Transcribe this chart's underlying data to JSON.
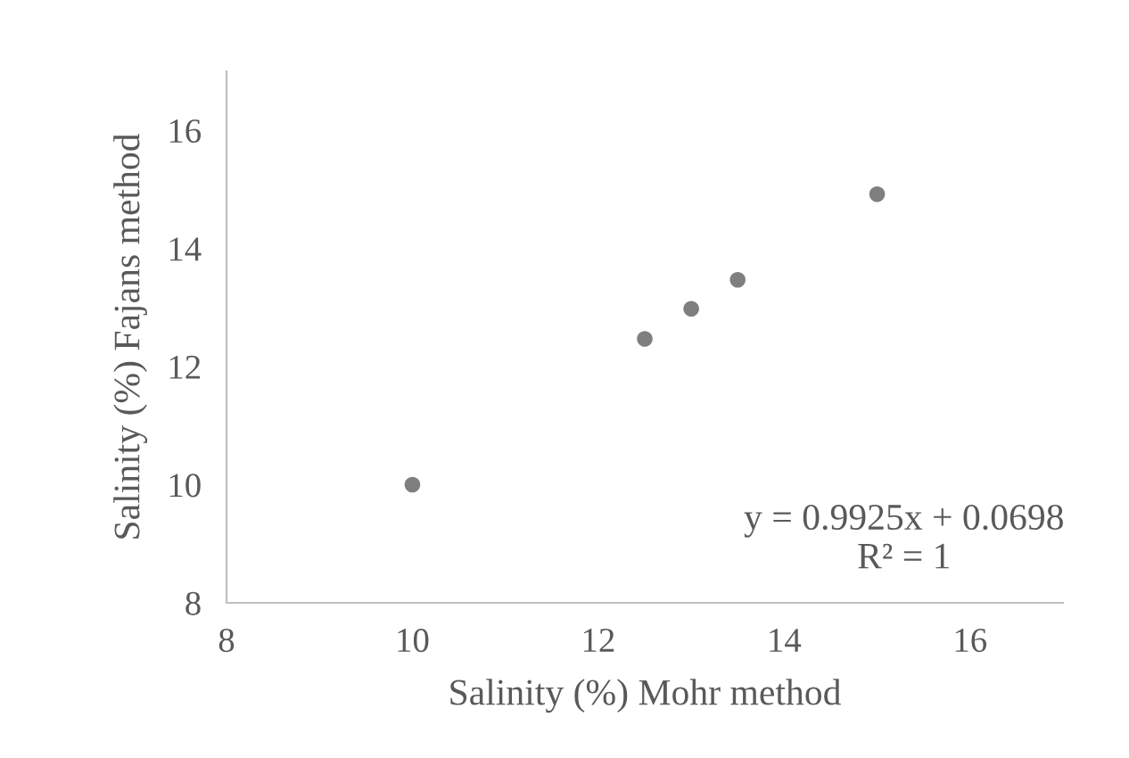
{
  "chart_data": {
    "type": "scatter",
    "xlabel": "Salinity (%) Mohr method",
    "ylabel": "Salinity (%) Fajans method",
    "x": [
      10,
      12.5,
      13,
      13.5,
      15
    ],
    "series": [
      {
        "color": "#7f7f7f",
        "values": [
          10.0,
          12.47,
          12.98,
          13.47,
          14.92
        ]
      }
    ],
    "marker": "circle",
    "xlim": [
      8,
      17
    ],
    "xticks": [
      8,
      10,
      12,
      14,
      16
    ],
    "ylim": [
      8,
      17
    ],
    "yticks": [
      8,
      10,
      12,
      14,
      16
    ],
    "grid": false,
    "legend": false,
    "annotations": [
      "y = 0.9925x + 0.0698\nR² = 1"
    ]
  }
}
